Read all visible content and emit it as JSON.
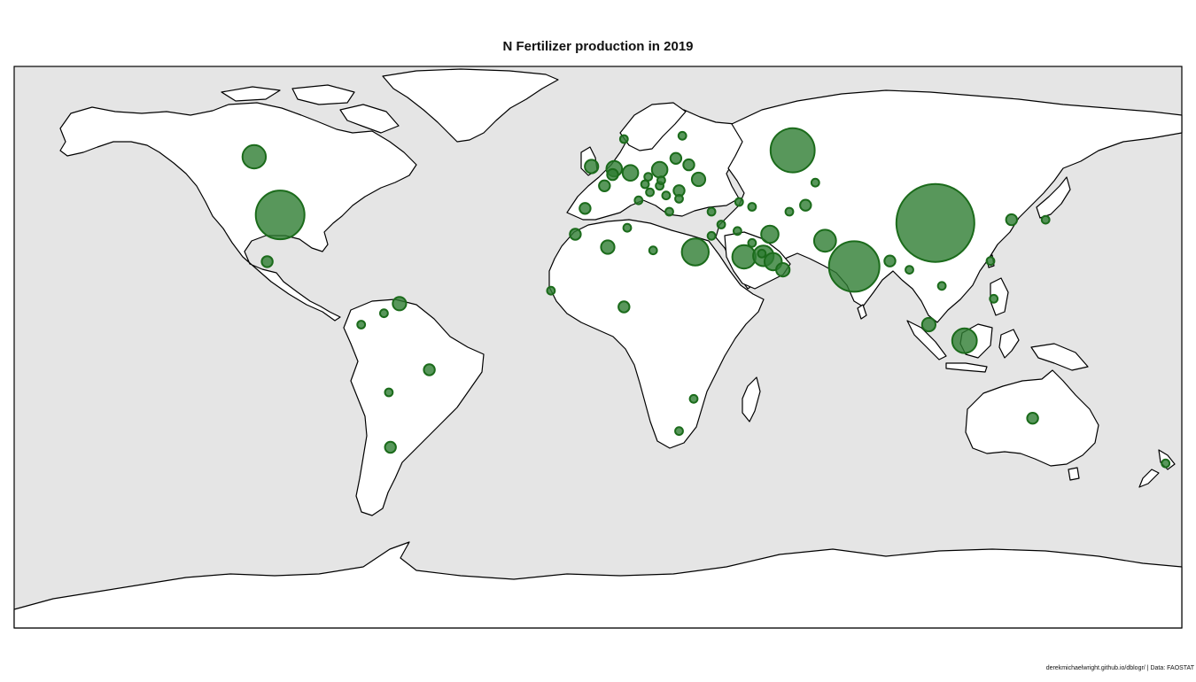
{
  "title": "N Fertilizer production in 2019",
  "caption": "derekmichaelwright.github.io/dblogr/ | Data: FAOSTAT",
  "colors": {
    "ocean": "#e5e5e5",
    "land": "#ffffff",
    "border": "#000000",
    "bubble": "#2e7d32",
    "bubble_stroke": "#1b6b1b"
  },
  "chart_data": {
    "type": "bubble-map",
    "title": "N Fertilizer production in 2019",
    "variable": "N fertilizer production",
    "year": 2019,
    "legend": "none",
    "points": [
      {
        "region": "China",
        "lon": 104,
        "lat": 35.5,
        "size": 100
      },
      {
        "region": "India",
        "lon": 79,
        "lat": 22,
        "size": 42
      },
      {
        "region": "USA",
        "lon": -98,
        "lat": 38,
        "size": 39
      },
      {
        "region": "Russia",
        "lon": 60,
        "lat": 58,
        "size": 32
      },
      {
        "region": "Indonesia",
        "lon": 113,
        "lat": -1,
        "size": 10
      },
      {
        "region": "Canada",
        "lon": -106,
        "lat": 56,
        "size": 9
      },
      {
        "region": "Egypt",
        "lon": 30,
        "lat": 26.5,
        "size": 12
      },
      {
        "region": "Saudi Arabia",
        "lon": 45,
        "lat": 25,
        "size": 9
      },
      {
        "region": "Qatar",
        "lon": 51,
        "lat": 25.3,
        "size": 7
      },
      {
        "region": "Pakistan",
        "lon": 70,
        "lat": 30,
        "size": 8
      },
      {
        "region": "Iran",
        "lon": 53,
        "lat": 32,
        "size": 5
      },
      {
        "region": "UAE",
        "lon": 54,
        "lat": 23.5,
        "size": 5
      },
      {
        "region": "Oman",
        "lon": 57,
        "lat": 21,
        "size": 3
      },
      {
        "region": "Poland",
        "lon": 19,
        "lat": 52,
        "size": 4
      },
      {
        "region": "Germany",
        "lon": 10,
        "lat": 51,
        "size": 4
      },
      {
        "region": "Netherlands",
        "lon": 5,
        "lat": 52.3,
        "size": 4
      },
      {
        "region": "Ukraine",
        "lon": 31,
        "lat": 49,
        "size": 3
      },
      {
        "region": "Belarus",
        "lon": 28,
        "lat": 53.5,
        "size": 2
      },
      {
        "region": "Lithuania",
        "lon": 24,
        "lat": 55.5,
        "size": 2
      },
      {
        "region": "France",
        "lon": 2,
        "lat": 47,
        "size": 2
      },
      {
        "region": "Spain",
        "lon": -4,
        "lat": 40,
        "size": 2
      },
      {
        "region": "Romania",
        "lon": 25,
        "lat": 45.5,
        "size": 2
      },
      {
        "region": "Hungary",
        "lon": 19,
        "lat": 47,
        "size": 1
      },
      {
        "region": "Austria",
        "lon": 14.5,
        "lat": 47.5,
        "size": 1
      },
      {
        "region": "Italy",
        "lon": 12.5,
        "lat": 42.5,
        "size": 1
      },
      {
        "region": "Bulgaria",
        "lon": 25,
        "lat": 43,
        "size": 1
      },
      {
        "region": "Serbia",
        "lon": 21,
        "lat": 44,
        "size": 1
      },
      {
        "region": "Czechia",
        "lon": 15.5,
        "lat": 49.8,
        "size": 1
      },
      {
        "region": "Slovakia",
        "lon": 19.5,
        "lat": 48.7,
        "size": 1
      },
      {
        "region": "Croatia",
        "lon": 16,
        "lat": 45,
        "size": 1
      },
      {
        "region": "Greece",
        "lon": 22,
        "lat": 39,
        "size": 1
      },
      {
        "region": "Norway",
        "lon": 8,
        "lat": 61.5,
        "size": 1
      },
      {
        "region": "Finland",
        "lon": 26,
        "lat": 62.5,
        "size": 1
      },
      {
        "region": "UK",
        "lon": -2,
        "lat": 53,
        "size": 3
      },
      {
        "region": "Belgium",
        "lon": 4.5,
        "lat": 50.5,
        "size": 2
      },
      {
        "region": "Turkey",
        "lon": 35,
        "lat": 39,
        "size": 1
      },
      {
        "region": "Georgia",
        "lon": 43.5,
        "lat": 42,
        "size": 1
      },
      {
        "region": "Azerbaijan",
        "lon": 47.5,
        "lat": 40.5,
        "size": 1
      },
      {
        "region": "Turkmenistan",
        "lon": 59,
        "lat": 39,
        "size": 1
      },
      {
        "region": "Uzbekistan",
        "lon": 64,
        "lat": 41,
        "size": 2
      },
      {
        "region": "Kazakhstan",
        "lon": 67,
        "lat": 48,
        "size": 1
      },
      {
        "region": "Syria",
        "lon": 38,
        "lat": 35,
        "size": 1
      },
      {
        "region": "Iraq",
        "lon": 43,
        "lat": 33,
        "size": 1
      },
      {
        "region": "Kuwait",
        "lon": 47.5,
        "lat": 29.3,
        "size": 1
      },
      {
        "region": "Bahrain",
        "lon": 50.5,
        "lat": 26,
        "size": 1
      },
      {
        "region": "Israel",
        "lon": 35,
        "lat": 31.5,
        "size": 1
      },
      {
        "region": "Algeria",
        "lon": 3,
        "lat": 28,
        "size": 3
      },
      {
        "region": "Tunisia",
        "lon": 9,
        "lat": 34,
        "size": 1
      },
      {
        "region": "Morocco",
        "lon": -7,
        "lat": 32,
        "size": 2
      },
      {
        "region": "Libya",
        "lon": 17,
        "lat": 27,
        "size": 1
      },
      {
        "region": "Nigeria",
        "lon": 8,
        "lat": 9.5,
        "size": 2
      },
      {
        "region": "Senegal",
        "lon": -14.5,
        "lat": 14.5,
        "size": 1
      },
      {
        "region": "Zimbabwe",
        "lon": 29.5,
        "lat": -19,
        "size": 1
      },
      {
        "region": "South Africa",
        "lon": 25,
        "lat": -29,
        "size": 1
      },
      {
        "region": "Bangladesh",
        "lon": 90,
        "lat": 23.7,
        "size": 2
      },
      {
        "region": "Myanmar",
        "lon": 96,
        "lat": 21,
        "size": 1
      },
      {
        "region": "Vietnam",
        "lon": 106,
        "lat": 16,
        "size": 1
      },
      {
        "region": "Malaysia",
        "lon": 102,
        "lat": 4,
        "size": 3
      },
      {
        "region": "South Korea",
        "lon": 127.5,
        "lat": 36.5,
        "size": 2
      },
      {
        "region": "Japan",
        "lon": 138,
        "lat": 36.5,
        "size": 1
      },
      {
        "region": "Taiwan",
        "lon": 121,
        "lat": 23.7,
        "size": 1
      },
      {
        "region": "Philippines",
        "lon": 122,
        "lat": 12,
        "size": 1
      },
      {
        "region": "Australia",
        "lon": 134,
        "lat": -25,
        "size": 2
      },
      {
        "region": "New Zealand",
        "lon": 175,
        "lat": -39,
        "size": 1
      },
      {
        "region": "Mexico",
        "lon": -102,
        "lat": 23.5,
        "size": 2
      },
      {
        "region": "Trinidad and Tobago",
        "lon": -61.2,
        "lat": 10.5,
        "size": 3
      },
      {
        "region": "Venezuela",
        "lon": -66,
        "lat": 7.5,
        "size": 1
      },
      {
        "region": "Colombia",
        "lon": -73,
        "lat": 4,
        "size": 1
      },
      {
        "region": "Brazil",
        "lon": -52,
        "lat": -10,
        "size": 2
      },
      {
        "region": "Bolivia",
        "lon": -64.5,
        "lat": -17,
        "size": 1
      },
      {
        "region": "Argentina",
        "lon": -64,
        "lat": -34,
        "size": 2
      }
    ]
  }
}
